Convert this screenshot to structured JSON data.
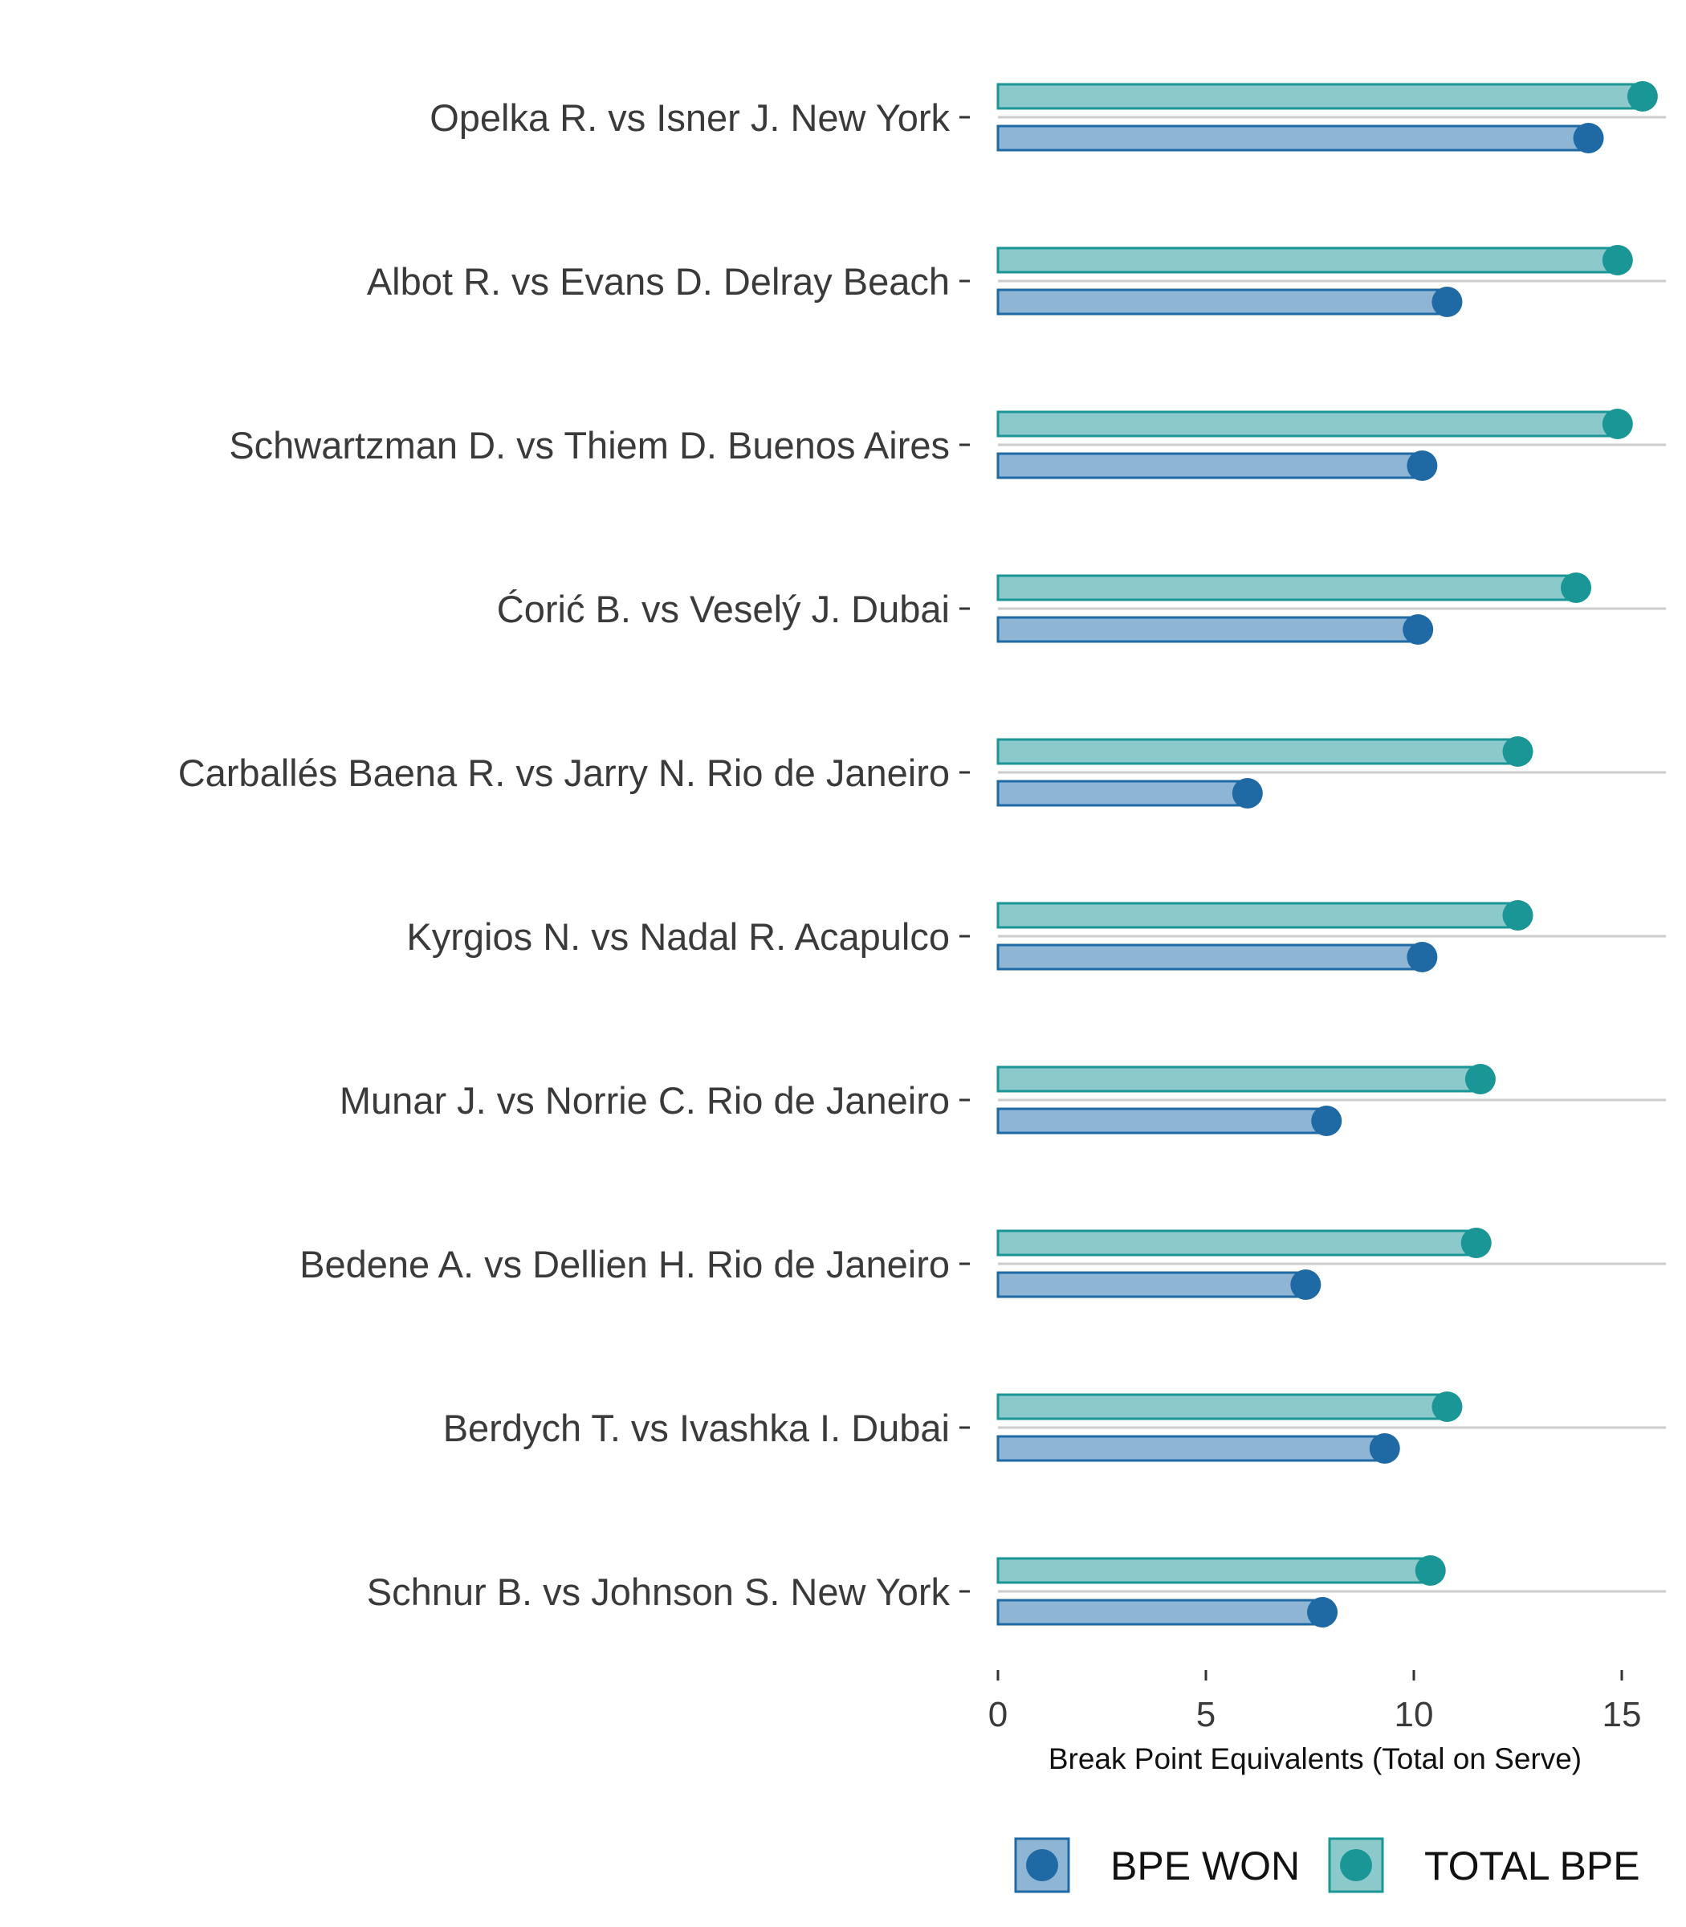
{
  "chart_data": {
    "type": "bar",
    "orientation": "horizontal",
    "title": "",
    "xlabel": "Break Point Equivalents (Total on Serve)",
    "ylabel": "",
    "xlim": [
      0,
      16
    ],
    "xticks": [
      0,
      5,
      10,
      15
    ],
    "grid": "horizontal gridlines at categories",
    "legend_position": "bottom-right",
    "categories": [
      "Opelka R. vs Isner J. New York",
      "Albot R. vs Evans D. Delray Beach",
      "Schwartzman D. vs Thiem D. Buenos Aires",
      "Ćorić B. vs Veselý J. Dubai",
      "Carballés Baena R. vs Jarry N. Rio de Janeiro",
      "Kyrgios N. vs Nadal R. Acapulco",
      "Munar J. vs Norrie C. Rio de Janeiro",
      "Bedene A. vs Dellien H. Rio de Janeiro",
      "Berdych T. vs Ivashka I. Dubai",
      "Schnur B. vs Johnson S. New York"
    ],
    "series": [
      {
        "name": "TOTAL BPE",
        "color": "#1a9696",
        "fill": "#8cc9ca",
        "values": [
          15.5,
          14.9,
          14.9,
          13.9,
          12.5,
          12.5,
          11.6,
          11.5,
          10.8,
          10.4
        ]
      },
      {
        "name": "BPE WON",
        "color": "#1f6aa5",
        "fill": "#8fb5d5",
        "values": [
          14.2,
          10.8,
          10.2,
          10.1,
          6.0,
          10.2,
          7.9,
          7.4,
          9.3,
          7.8
        ]
      }
    ],
    "legend": [
      {
        "label": "BPE WON",
        "series": "BPE WON"
      },
      {
        "label": "TOTAL BPE",
        "series": "TOTAL BPE"
      }
    ]
  }
}
